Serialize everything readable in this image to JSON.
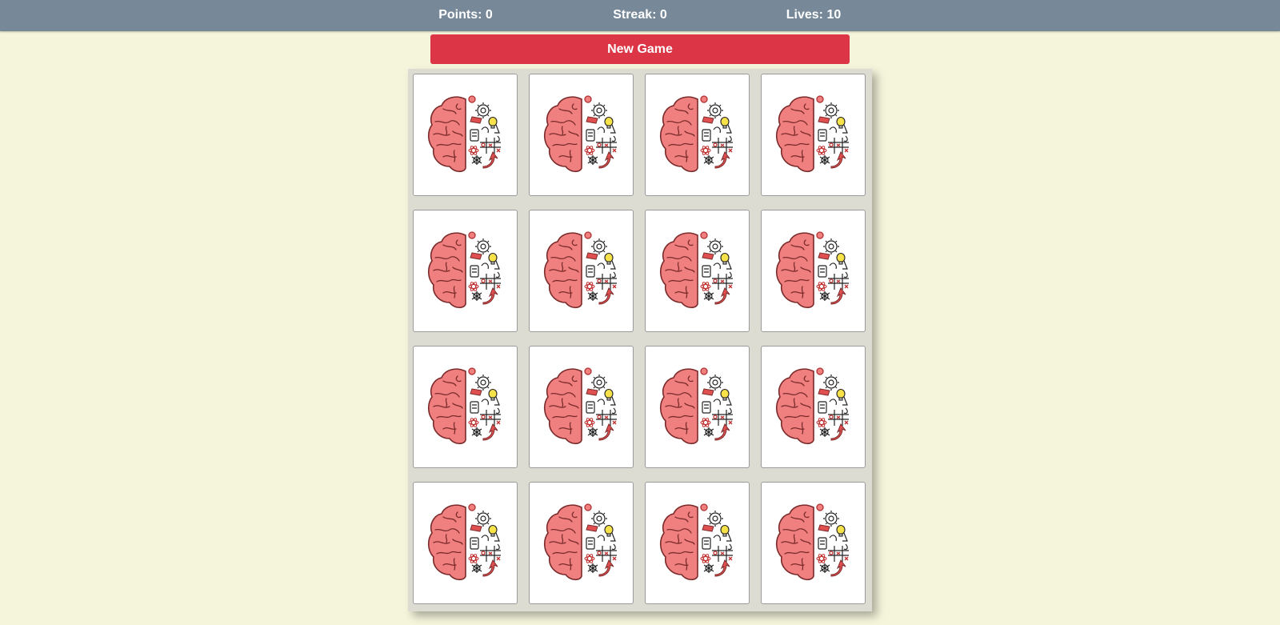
{
  "header": {
    "points_label": "Points: 0",
    "streak_label": "Streak: 0",
    "lives_label": "Lives: 10"
  },
  "controls": {
    "new_game_label": "New Game"
  },
  "board": {
    "rows": 4,
    "columns": 4,
    "card_count": 16,
    "card_back_icon": "brain-icon",
    "cards_face_down": true
  },
  "colors": {
    "header_bg": "#778899",
    "page_bg": "#f5f5dc",
    "button_bg": "#dc3545",
    "board_bg": "#dcdcd2",
    "brain_pink": "#f08080"
  }
}
